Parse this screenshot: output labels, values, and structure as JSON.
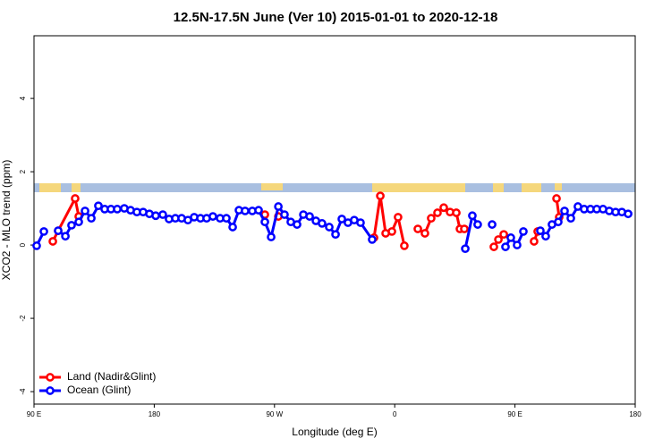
{
  "chart_data": {
    "type": "line",
    "title": "12.5N-17.5N June (Ver 10)   2015-01-01 to 2020-12-18",
    "x_label": "Longitude (deg E)",
    "y_label": "XCO2 - MLO trend (ppm)",
    "xlim": [
      90,
      540
    ],
    "ylim": [
      -4.34,
      5.71
    ],
    "xticks": [
      {
        "value": 90,
        "label": "90 E"
      },
      180,
      {
        "value": 270,
        "label": "90 W"
      },
      {
        "value": 360,
        "label": "0"
      },
      {
        "value": 450,
        "label": "90 E"
      },
      {
        "value": 540,
        "label": "180"
      }
    ],
    "yticks": [
      -4,
      -2,
      0,
      2,
      4
    ],
    "legend": "bottom-left",
    "series": [
      {
        "name": "Land (Nadir&Glint)",
        "color": "#ff0000",
        "x": [
          104.1,
          108.1,
          120.8,
          123.5,
          null,
          262.8,
          null,
          272.9,
          null,
          344.5,
          349.2,
          353.2,
          357.9,
          362.5,
          367.2,
          null,
          377.3,
          382.6,
          387.3,
          392.0,
          396.7,
          401.4,
          406.1,
          408.8,
          412.1,
          null,
          434.2,
          437.6,
          441.6,
          null,
          464.3,
          467.0,
          null,
          481.1,
          483.1
        ],
        "values": [
          0.1,
          0.39,
          1.27,
          0.78,
          null,
          0.83,
          null,
          0.78,
          null,
          0.2,
          1.34,
          0.32,
          0.37,
          0.76,
          -0.02,
          null,
          0.44,
          0.32,
          0.73,
          0.88,
          1.02,
          0.9,
          0.88,
          0.44,
          0.44,
          null,
          -0.05,
          0.15,
          0.29,
          null,
          0.1,
          0.37,
          null,
          1.27,
          0.76
        ]
      },
      {
        "name": "Ocean (Glint)",
        "color": "#0000ff",
        "x": [
          92.0,
          97.4,
          null,
          108.1,
          113.5,
          118.1,
          123.5,
          128.2,
          132.9,
          138.2,
          142.9,
          147.6,
          152.3,
          157.6,
          162.3,
          167.0,
          171.7,
          176.4,
          181.1,
          186.4,
          191.1,
          195.8,
          200.5,
          205.2,
          209.9,
          214.6,
          219.2,
          223.9,
          229.3,
          234.0,
          238.7,
          243.4,
          248.0,
          253.4,
          258.1,
          262.8,
          267.5,
          272.9,
          277.5,
          282.2,
          286.9,
          291.6,
          296.3,
          301.0,
          305.6,
          311.0,
          315.7,
          320.4,
          325.0,
          329.7,
          334.4,
          343.1,
          null,
          412.8,
          418.1,
          422.1,
          null,
          432.9,
          null,
          442.9,
          446.9,
          451.6,
          456.3,
          null,
          469.0,
          473.0,
          477.7,
          482.4,
          487.1,
          491.8,
          497.1,
          501.8,
          506.5,
          511.2,
          515.9,
          520.6,
          525.3,
          530.0,
          534.7
        ],
        "values": [
          -0.02,
          0.37,
          null,
          0.39,
          0.24,
          0.54,
          0.63,
          0.93,
          0.73,
          1.07,
          0.98,
          0.98,
          0.98,
          1.0,
          0.95,
          0.9,
          0.9,
          0.85,
          0.8,
          0.83,
          0.71,
          0.73,
          0.73,
          0.68,
          0.76,
          0.73,
          0.73,
          0.78,
          0.73,
          0.73,
          0.49,
          0.95,
          0.93,
          0.93,
          0.95,
          0.63,
          0.22,
          1.05,
          0.83,
          0.63,
          0.56,
          0.83,
          0.78,
          0.66,
          0.59,
          0.49,
          0.29,
          0.71,
          0.61,
          0.68,
          0.61,
          0.15,
          null,
          -0.1,
          0.8,
          0.56,
          null,
          0.56,
          null,
          -0.05,
          0.2,
          0.0,
          0.37,
          null,
          0.39,
          0.24,
          0.56,
          0.63,
          0.93,
          0.73,
          1.05,
          0.98,
          0.98,
          0.98,
          0.98,
          0.93,
          0.9,
          0.9,
          0.85
        ]
      }
    ]
  }
}
